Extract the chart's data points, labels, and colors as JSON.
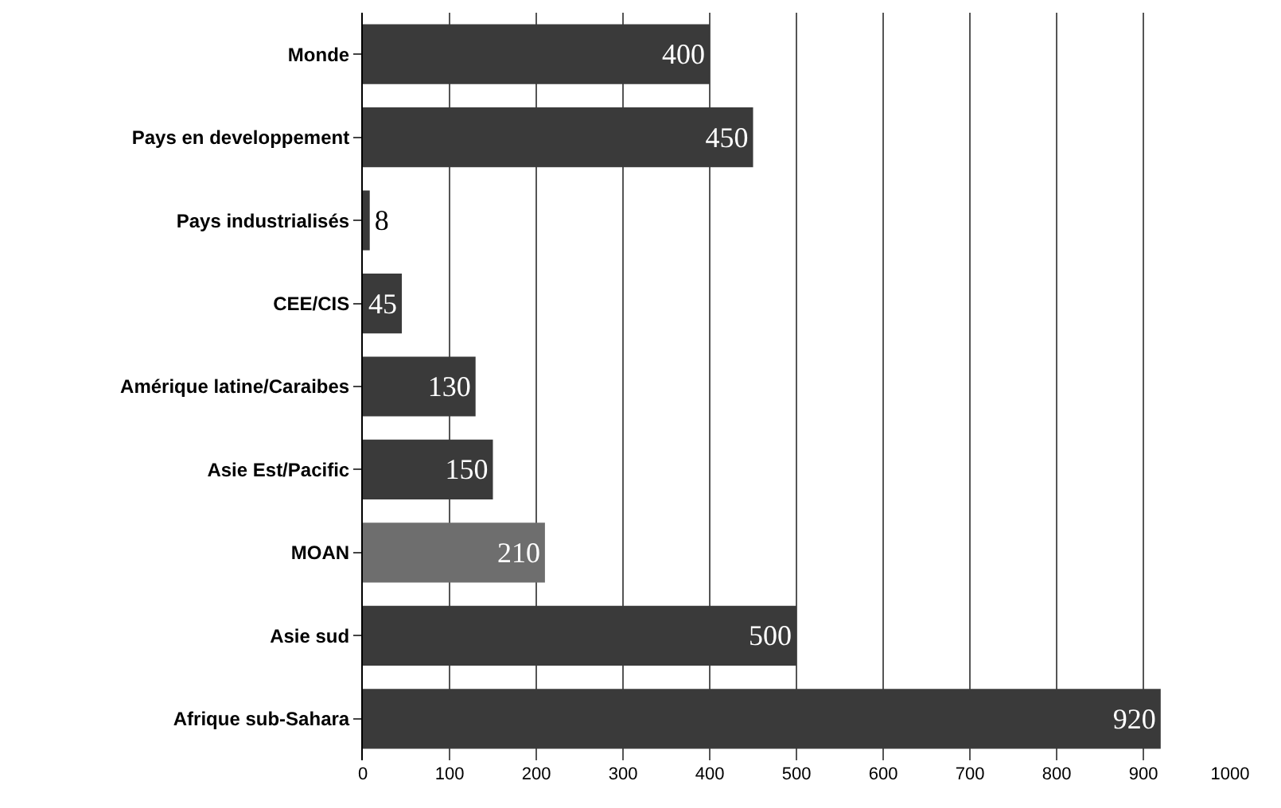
{
  "chart_data": {
    "type": "bar",
    "orientation": "horizontal",
    "categories": [
      "Monde",
      "Pays en developpement",
      "Pays industrialisés",
      "CEE/CIS",
      "Amérique latine/Caraibes",
      "Asie Est/Pacific",
      "MOAN",
      "Asie sud",
      "Afrique sub-Sahara"
    ],
    "values": [
      400,
      450,
      8,
      45,
      130,
      150,
      210,
      500,
      920
    ],
    "colors": [
      "#3a3a3a",
      "#3a3a3a",
      "#3a3a3a",
      "#3a3a3a",
      "#3a3a3a",
      "#3a3a3a",
      "#6e6e6e",
      "#3a3a3a",
      "#3a3a3a"
    ],
    "xlim": [
      0,
      1000
    ],
    "xticks": [
      0,
      100,
      200,
      300,
      400,
      500,
      600,
      700,
      800,
      900,
      1000
    ],
    "grid": "x",
    "data_labels": true
  }
}
